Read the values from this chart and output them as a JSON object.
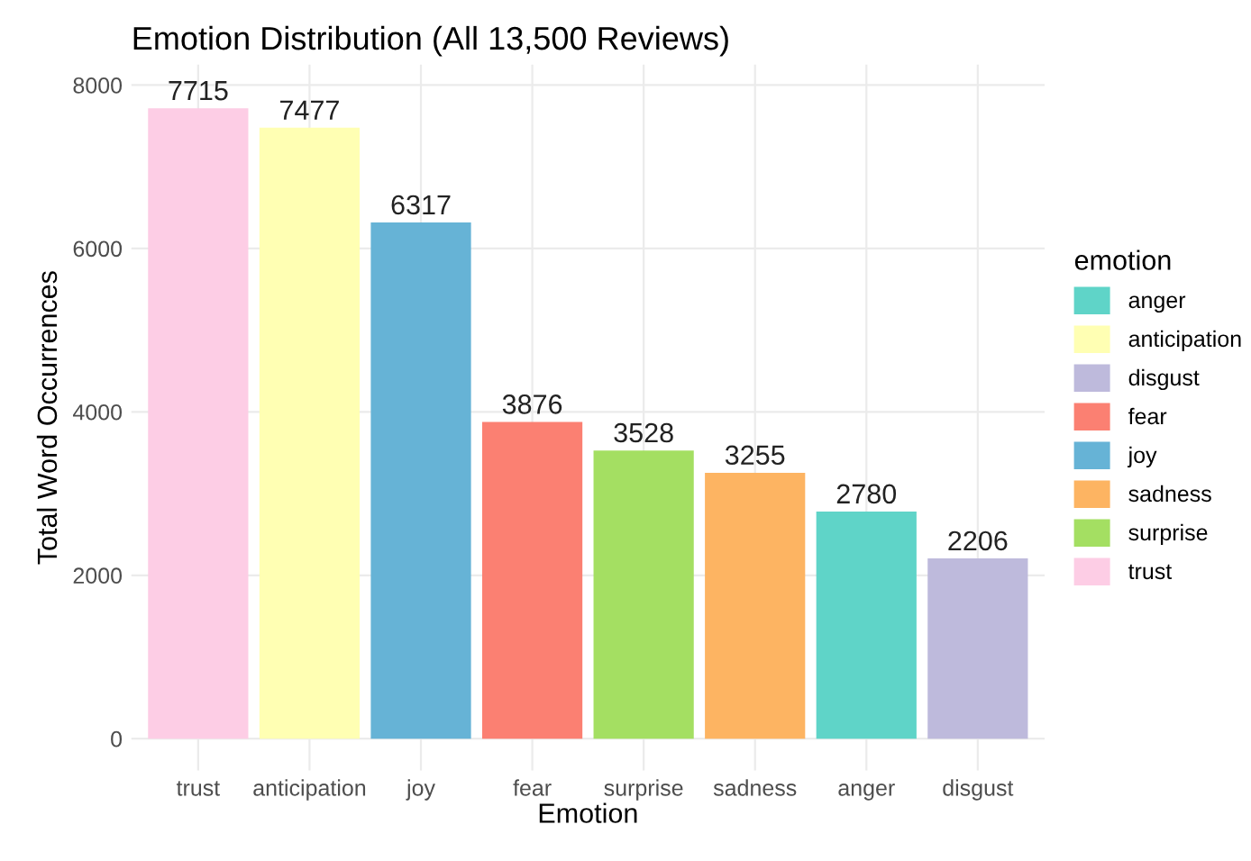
{
  "chart_data": {
    "type": "bar",
    "title": "Emotion Distribution (All 13,500 Reviews)",
    "xlabel": "Emotion",
    "ylabel": "Total Word Occurrences",
    "legend_title": "emotion",
    "legend": "right",
    "categories": [
      "trust",
      "anticipation",
      "joy",
      "fear",
      "surprise",
      "sadness",
      "anger",
      "disgust"
    ],
    "series": [
      {
        "name": "anger",
        "color": "#5fd4c8",
        "values": [
          null,
          null,
          null,
          null,
          null,
          null,
          2780,
          null
        ]
      },
      {
        "name": "anticipation",
        "color": "#ffffb3",
        "values": [
          null,
          7477,
          null,
          null,
          null,
          null,
          null,
          null
        ]
      },
      {
        "name": "disgust",
        "color": "#bebadc",
        "values": [
          null,
          null,
          null,
          null,
          null,
          null,
          null,
          2206
        ]
      },
      {
        "name": "fear",
        "color": "#fb8072",
        "values": [
          null,
          null,
          null,
          3876,
          null,
          null,
          null,
          null
        ]
      },
      {
        "name": "joy",
        "color": "#66b3d6",
        "values": [
          null,
          null,
          6317,
          null,
          null,
          null,
          null,
          null
        ]
      },
      {
        "name": "sadness",
        "color": "#fdb462",
        "values": [
          null,
          null,
          null,
          null,
          null,
          3255,
          null,
          null
        ]
      },
      {
        "name": "surprise",
        "color": "#a4df62",
        "values": [
          null,
          null,
          null,
          null,
          3528,
          null,
          null,
          null
        ]
      },
      {
        "name": "trust",
        "color": "#fdcde5",
        "values": [
          7715,
          null,
          null,
          null,
          null,
          null,
          null,
          null
        ]
      }
    ],
    "ylim": [
      -390,
      8250
    ],
    "yticks": [
      0,
      2000,
      4000,
      6000,
      8000
    ],
    "grid": true,
    "data_labels": true
  }
}
